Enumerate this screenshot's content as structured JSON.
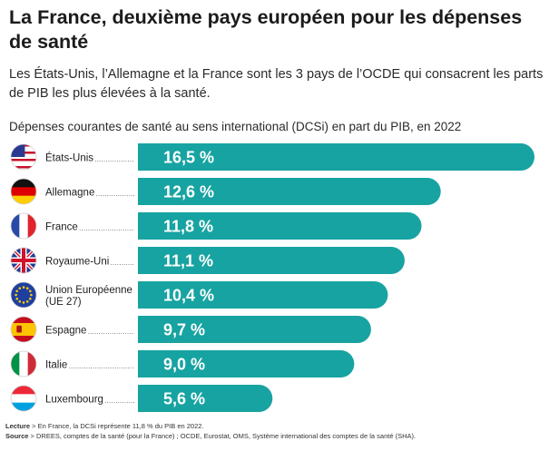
{
  "header": {
    "title": "La France, deuxième pays européen pour les dépenses de santé",
    "subtitle": "Les États-Unis, l’Allemagne et la France sont les 3 pays de l’OCDE qui consacrent les parts de PIB les plus élevées à la santé."
  },
  "chart_data": {
    "type": "bar",
    "orientation": "horizontal",
    "title": "Dépenses courantes de santé au sens international (DCSi) en part du PIB, en 2022",
    "categories": [
      [
        "États-Unis"
      ],
      [
        "Allemagne"
      ],
      [
        "France"
      ],
      [
        "Royaume-Uni"
      ],
      [
        "Union Européenne",
        "(UE 27)"
      ],
      [
        "Espagne"
      ],
      [
        "Italie"
      ],
      [
        "Luxembourg"
      ]
    ],
    "flags": [
      "us-flag-icon",
      "de-flag-icon",
      "fr-flag-icon",
      "uk-flag-icon",
      "eu-flag-icon",
      "es-flag-icon",
      "it-flag-icon",
      "lu-flag-icon"
    ],
    "values": [
      16.5,
      12.6,
      11.8,
      11.1,
      10.4,
      9.7,
      9.0,
      5.6
    ],
    "value_labels": [
      "16,5 %",
      "12,6 %",
      "11,8 %",
      "11,1 %",
      "10,4 %",
      "9,7 %",
      "9,0 %",
      "5,6 %"
    ],
    "bar_color": "#17a3a1",
    "label_color": "#ffffff"
  },
  "notes": {
    "lecture_label": "Lecture",
    "lecture_text": " > En France, la DCSi représente 11,8 % du PIB en 2022.",
    "source_label": "Source",
    "source_text": " > DREES, comptes de la santé (pour la France) ; OCDE, Eurostat, OMS, Système international des comptes de la santé (SHA)."
  }
}
